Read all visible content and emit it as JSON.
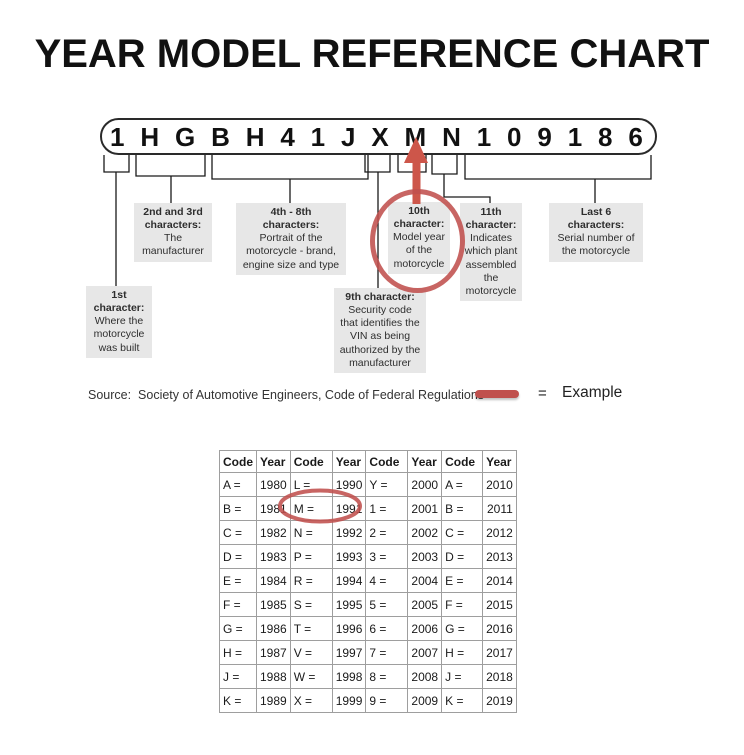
{
  "colors": {
    "accent_red": "#c0504d",
    "arrow_red": "#cd564a",
    "callout_bg": "#e7e7e7"
  },
  "title": "YEAR MODEL REFERENCE CHART",
  "vin": {
    "characters": [
      "1",
      "H",
      "G",
      "B",
      "H",
      "4",
      "1",
      "J",
      "X",
      "M",
      "N",
      "1",
      "0",
      "9",
      "1",
      "8",
      "6"
    ]
  },
  "callouts": [
    {
      "title": "1st\ncharacter:",
      "body": "Where the\nmotorcycle\nwas built"
    },
    {
      "title": "2nd and 3rd\ncharacters:",
      "body": "The\nmanufacturer"
    },
    {
      "title": "4th - 8th\ncharacters:",
      "body": "Portrait of the\nmotorcycle - brand,\nengine size and type"
    },
    {
      "title": "9th character:",
      "body": "Security code\nthat identifies the\nVIN as being\nauthorized by the\nmanufacturer"
    },
    {
      "title": "10th\ncharacter:",
      "body": "Model year\nof the\nmotorcycle"
    },
    {
      "title": "11th\ncharacter:",
      "body": "Indicates\nwhich plant\nassembled\nthe\nmotorcycle"
    },
    {
      "title": "Last 6\ncharacters:",
      "body": "Serial number of\nthe motorcycle"
    }
  ],
  "source_line": "Source:  Society of Automotive Engineers, Code of Federal Regulations",
  "legend": {
    "equals": "=",
    "label": "Example"
  },
  "table": {
    "headers": [
      "Code",
      "Year",
      "Code",
      "Year",
      "Code",
      "Year",
      "Code",
      "Year"
    ],
    "rows": [
      [
        "A =",
        "1980",
        "L =",
        "1990",
        "Y =",
        "2000",
        "A =",
        "2010"
      ],
      [
        "B =",
        "1981",
        "M =",
        "1991",
        "1 =",
        "2001",
        "B =",
        "2011"
      ],
      [
        "C =",
        "1982",
        "N =",
        "1992",
        "2 =",
        "2002",
        "C =",
        "2012"
      ],
      [
        "D =",
        "1983",
        "P =",
        "1993",
        "3 =",
        "2003",
        "D =",
        "2013"
      ],
      [
        "E =",
        "1984",
        "R =",
        "1994",
        "4 =",
        "2004",
        "E =",
        "2014"
      ],
      [
        "F =",
        "1985",
        "S =",
        "1995",
        "5 =",
        "2005",
        "F =",
        "2015"
      ],
      [
        "G =",
        "1986",
        "T =",
        "1996",
        "6 =",
        "2006",
        "G =",
        "2016"
      ],
      [
        "H =",
        "1987",
        "V =",
        "1997",
        "7 =",
        "2007",
        "H =",
        "2017"
      ],
      [
        "J =",
        "1988",
        "W =",
        "1998",
        "8 =",
        "2008",
        "J =",
        "2018"
      ],
      [
        "K =",
        "1989",
        "X =",
        "1999",
        "9 =",
        "2009",
        "K =",
        "2019"
      ]
    ],
    "circled_value": "M = 1991"
  }
}
